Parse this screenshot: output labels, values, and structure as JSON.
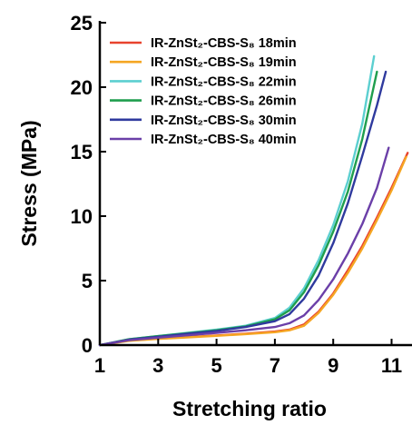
{
  "chart_data": {
    "type": "line",
    "xlabel": "Stretching ratio",
    "ylabel": "Stress (MPa)",
    "xlim": [
      1,
      11.7
    ],
    "ylim": [
      0,
      25
    ],
    "xticks": [
      1,
      3,
      5,
      7,
      9,
      11
    ],
    "yticks": [
      0,
      5,
      10,
      15,
      20,
      25
    ],
    "grid": false,
    "legend_position": "top-left",
    "series": [
      {
        "name": "IR-ZnSt₂-CBS-S₈ 18min",
        "color": "#e8432e",
        "x": [
          1,
          2,
          3,
          4,
          5,
          6,
          7,
          7.5,
          8,
          8.5,
          9,
          9.5,
          10,
          10.5,
          11,
          11.55
        ],
        "y": [
          0,
          0.35,
          0.5,
          0.62,
          0.75,
          0.88,
          1.05,
          1.2,
          1.6,
          2.6,
          4.0,
          5.8,
          7.7,
          9.9,
          12.2,
          14.9
        ]
      },
      {
        "name": "IR-ZnSt₂-CBS-S₈ 19min",
        "color": "#f5a623",
        "x": [
          1,
          2,
          3,
          4,
          5,
          6,
          7,
          7.5,
          8,
          8.5,
          9,
          9.5,
          10,
          10.5,
          11,
          11.5
        ],
        "y": [
          0,
          0.33,
          0.48,
          0.6,
          0.72,
          0.85,
          1.0,
          1.15,
          1.5,
          2.5,
          3.9,
          5.6,
          7.5,
          9.7,
          12.0,
          14.6
        ]
      },
      {
        "name": "IR-ZnSt₂-CBS-S₈ 22min",
        "color": "#5ccfd0",
        "x": [
          1,
          2,
          3,
          4,
          5,
          6,
          7,
          7.5,
          8,
          8.5,
          9,
          9.5,
          10,
          10.4
        ],
        "y": [
          0,
          0.45,
          0.7,
          0.95,
          1.2,
          1.5,
          2.1,
          2.9,
          4.4,
          6.6,
          9.3,
          12.7,
          17.2,
          22.4
        ]
      },
      {
        "name": "IR-ZnSt₂-CBS-S₈ 26min",
        "color": "#1f9e4e",
        "x": [
          1,
          2,
          3,
          4,
          5,
          6,
          7,
          7.5,
          8,
          8.5,
          9,
          9.5,
          10,
          10.5
        ],
        "y": [
          0,
          0.45,
          0.7,
          0.92,
          1.15,
          1.45,
          2.0,
          2.7,
          4.1,
          6.2,
          8.8,
          11.9,
          16.0,
          21.2
        ]
      },
      {
        "name": "IR-ZnSt₂-CBS-S₈ 30min",
        "color": "#2f3a9e",
        "x": [
          1,
          2,
          3,
          4,
          5,
          6,
          7,
          7.5,
          8,
          8.5,
          9,
          9.5,
          10,
          10.5,
          10.8
        ],
        "y": [
          0,
          0.42,
          0.65,
          0.88,
          1.1,
          1.4,
          1.85,
          2.4,
          3.6,
          5.4,
          7.9,
          11.0,
          14.7,
          18.6,
          21.2
        ]
      },
      {
        "name": "IR-ZnSt₂-CBS-S₈ 40min",
        "color": "#6b3fa8",
        "x": [
          1,
          2,
          3,
          4,
          5,
          6,
          7,
          7.5,
          8,
          8.5,
          9,
          9.5,
          10,
          10.5,
          10.9
        ],
        "y": [
          0,
          0.38,
          0.58,
          0.76,
          0.95,
          1.15,
          1.4,
          1.7,
          2.3,
          3.5,
          5.1,
          7.1,
          9.4,
          12.2,
          15.3
        ]
      }
    ]
  }
}
